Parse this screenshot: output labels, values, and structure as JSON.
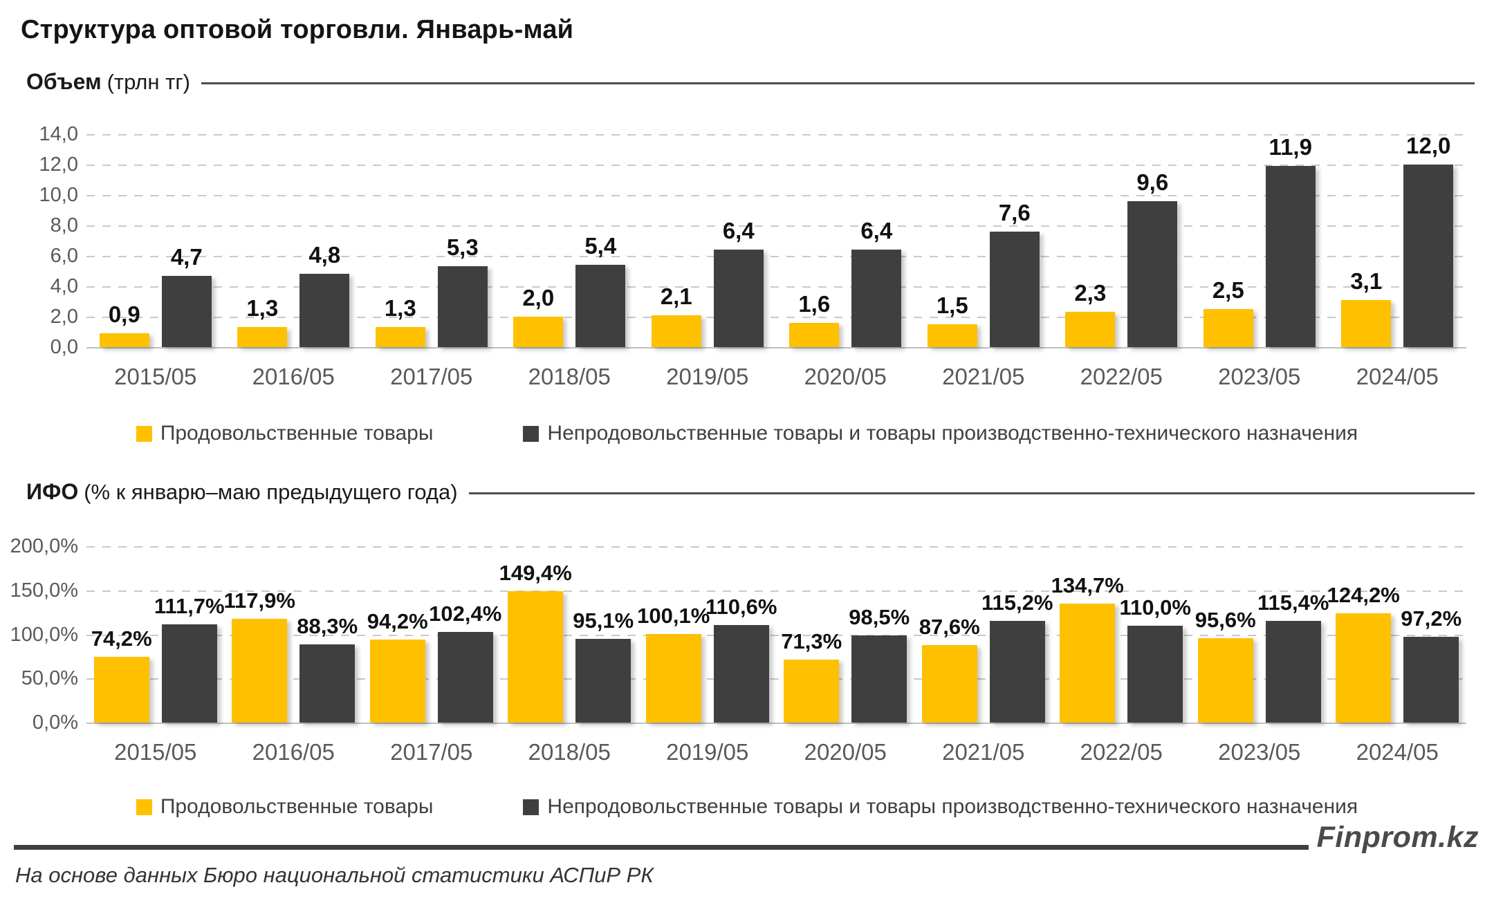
{
  "title": "Структура оптовой торговли. Январь-май",
  "legend": {
    "food": "Продовольственные товары",
    "nonfood": "Непродовольственные товары и товары производственно-технического назначения"
  },
  "colors": {
    "food": "#FFC000",
    "nonfood": "#3F3F3F",
    "grid": "#C9C9C9",
    "axis": "#BFBFBF",
    "tick_text": "#595959",
    "value_text": "#111111"
  },
  "footer": {
    "brand": "Finprom.kz",
    "source": "На основе данных Бюро национальной статистики АСПиР РК"
  },
  "chart_data": [
    {
      "type": "bar",
      "header_bold": "Объем",
      "header_rest": "(трлн тг)",
      "categories": [
        "2015/05",
        "2016/05",
        "2017/05",
        "2018/05",
        "2019/05",
        "2020/05",
        "2021/05",
        "2022/05",
        "2023/05",
        "2024/05"
      ],
      "series": [
        {
          "name": "Продовольственные товары",
          "color": "#FFC000",
          "values": [
            0.9,
            1.3,
            1.3,
            2.0,
            2.1,
            1.6,
            1.5,
            2.3,
            2.5,
            3.1
          ],
          "labels": [
            "0,9",
            "1,3",
            "1,3",
            "2,0",
            "2,1",
            "1,6",
            "1,5",
            "2,3",
            "2,5",
            "3,1"
          ]
        },
        {
          "name": "Непродовольственные товары и товары производственно-технического назначения",
          "color": "#3F3F3F",
          "values": [
            4.7,
            4.8,
            5.3,
            5.4,
            6.4,
            6.4,
            7.6,
            9.6,
            11.9,
            12.0
          ],
          "labels": [
            "4,7",
            "4,8",
            "5,3",
            "5,4",
            "6,4",
            "6,4",
            "7,6",
            "9,6",
            "11,9",
            "12,0"
          ]
        }
      ],
      "ylabel": "трлн тг",
      "ylim": [
        0,
        14
      ],
      "yticks": [
        {
          "value": 0,
          "label": "0,0"
        },
        {
          "value": 2,
          "label": "2,0"
        },
        {
          "value": 4,
          "label": "4,0"
        },
        {
          "value": 6,
          "label": "6,0"
        },
        {
          "value": 8,
          "label": "8,0"
        },
        {
          "value": 10,
          "label": "10,0"
        },
        {
          "value": 12,
          "label": "12,0"
        },
        {
          "value": 14,
          "label": "14,0"
        }
      ],
      "grid": true,
      "legend_position": "bottom"
    },
    {
      "type": "bar",
      "header_bold": "ИФО",
      "header_rest": "(% к январю–маю предыдущего года)",
      "categories": [
        "2015/05",
        "2016/05",
        "2017/05",
        "2018/05",
        "2019/05",
        "2020/05",
        "2021/05",
        "2022/05",
        "2023/05",
        "2024/05"
      ],
      "series": [
        {
          "name": "Продовольственные товары",
          "color": "#FFC000",
          "values": [
            74.2,
            117.9,
            94.2,
            149.4,
            100.1,
            71.3,
            87.6,
            134.7,
            95.6,
            124.2
          ],
          "labels": [
            "74,2%",
            "117,9%",
            "94,2%",
            "149,4%",
            "100,1%",
            "71,3%",
            "87,6%",
            "134,7%",
            "95,6%",
            "124,2%"
          ]
        },
        {
          "name": "Непродовольственные товары и товары производственно-технического назначения",
          "color": "#3F3F3F",
          "values": [
            111.7,
            88.3,
            102.4,
            95.1,
            110.6,
            98.5,
            115.2,
            110.0,
            115.4,
            97.2
          ],
          "labels": [
            "111,7%",
            "88,3%",
            "102,4%",
            "95,1%",
            "110,6%",
            "98,5%",
            "115,2%",
            "110,0%",
            "115,4%",
            "97,2%"
          ]
        }
      ],
      "ylabel": "% к январю–маю предыдущего года",
      "ylim": [
        0,
        200
      ],
      "yticks": [
        {
          "value": 0,
          "label": "0,0%"
        },
        {
          "value": 50,
          "label": "50,0%"
        },
        {
          "value": 100,
          "label": "100,0%"
        },
        {
          "value": 150,
          "label": "150,0%"
        },
        {
          "value": 200,
          "label": "200,0%"
        }
      ],
      "grid": true,
      "legend_position": "bottom"
    }
  ]
}
